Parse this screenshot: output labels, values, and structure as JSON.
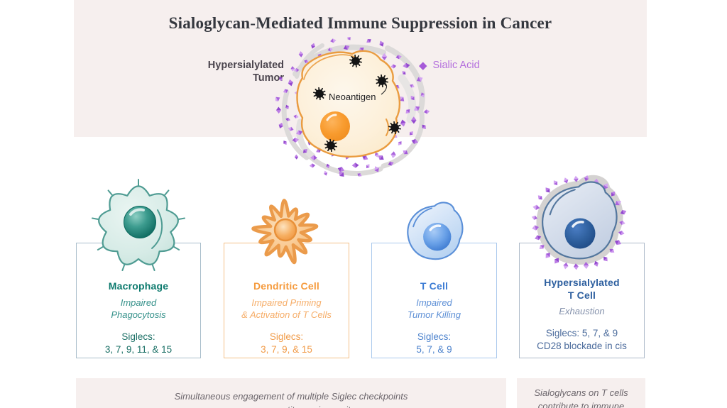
{
  "title": "Sialoglycan-Mediated Immune Suppression in Cancer",
  "hero": {
    "tumor_label": "Hypersialylated\nTumor",
    "neoantigen_label": "Neoantigen",
    "legend": {
      "label": "Sialic Acid",
      "diamond_glyph": "◆"
    }
  },
  "cards": [
    {
      "title": "Macrophage",
      "effect": "Impaired\nPhagocytosis",
      "siglecs": "Siglecs:\n3, 7, 9, 11, & 15",
      "accent": "#0d7a6e"
    },
    {
      "title": "Dendritic Cell",
      "effect": "Impaired Priming\n& Activation of T Cells",
      "siglecs": "Siglecs:\n3, 7, 9, & 15",
      "accent": "#f59a3c"
    },
    {
      "title": "T Cell",
      "effect": "Impaired\nTumor Killing",
      "siglecs": "Siglecs:\n5, 7, & 9",
      "accent": "#3c7cd4"
    },
    {
      "title": "Hypersialylated\nT Cell",
      "effect": "Exhaustion",
      "siglecs": "Siglecs: 5, 7, & 9\nCD28 blockade in cis",
      "accent": "#2d5f9f"
    }
  ],
  "notes": [
    {
      "text": "Simultaneous engagement of multiple Siglec checkpoints\nsuppresses antitumor immunity"
    },
    {
      "text": "Sialoglycans on T cells\ncontribute to immune"
    }
  ],
  "colors": {
    "band_background": "#f6efee",
    "sialic_purple": "#a65ad8",
    "sialic_label_purple": "#b46fdd",
    "macrophage_teal": "#0d7a6e",
    "dendritic_orange": "#f59a3c",
    "tcell_blue": "#3c7cd4",
    "hyper_tcell_navy": "#2d5f9f",
    "tumor_outline_orange": "#ea9c40"
  }
}
